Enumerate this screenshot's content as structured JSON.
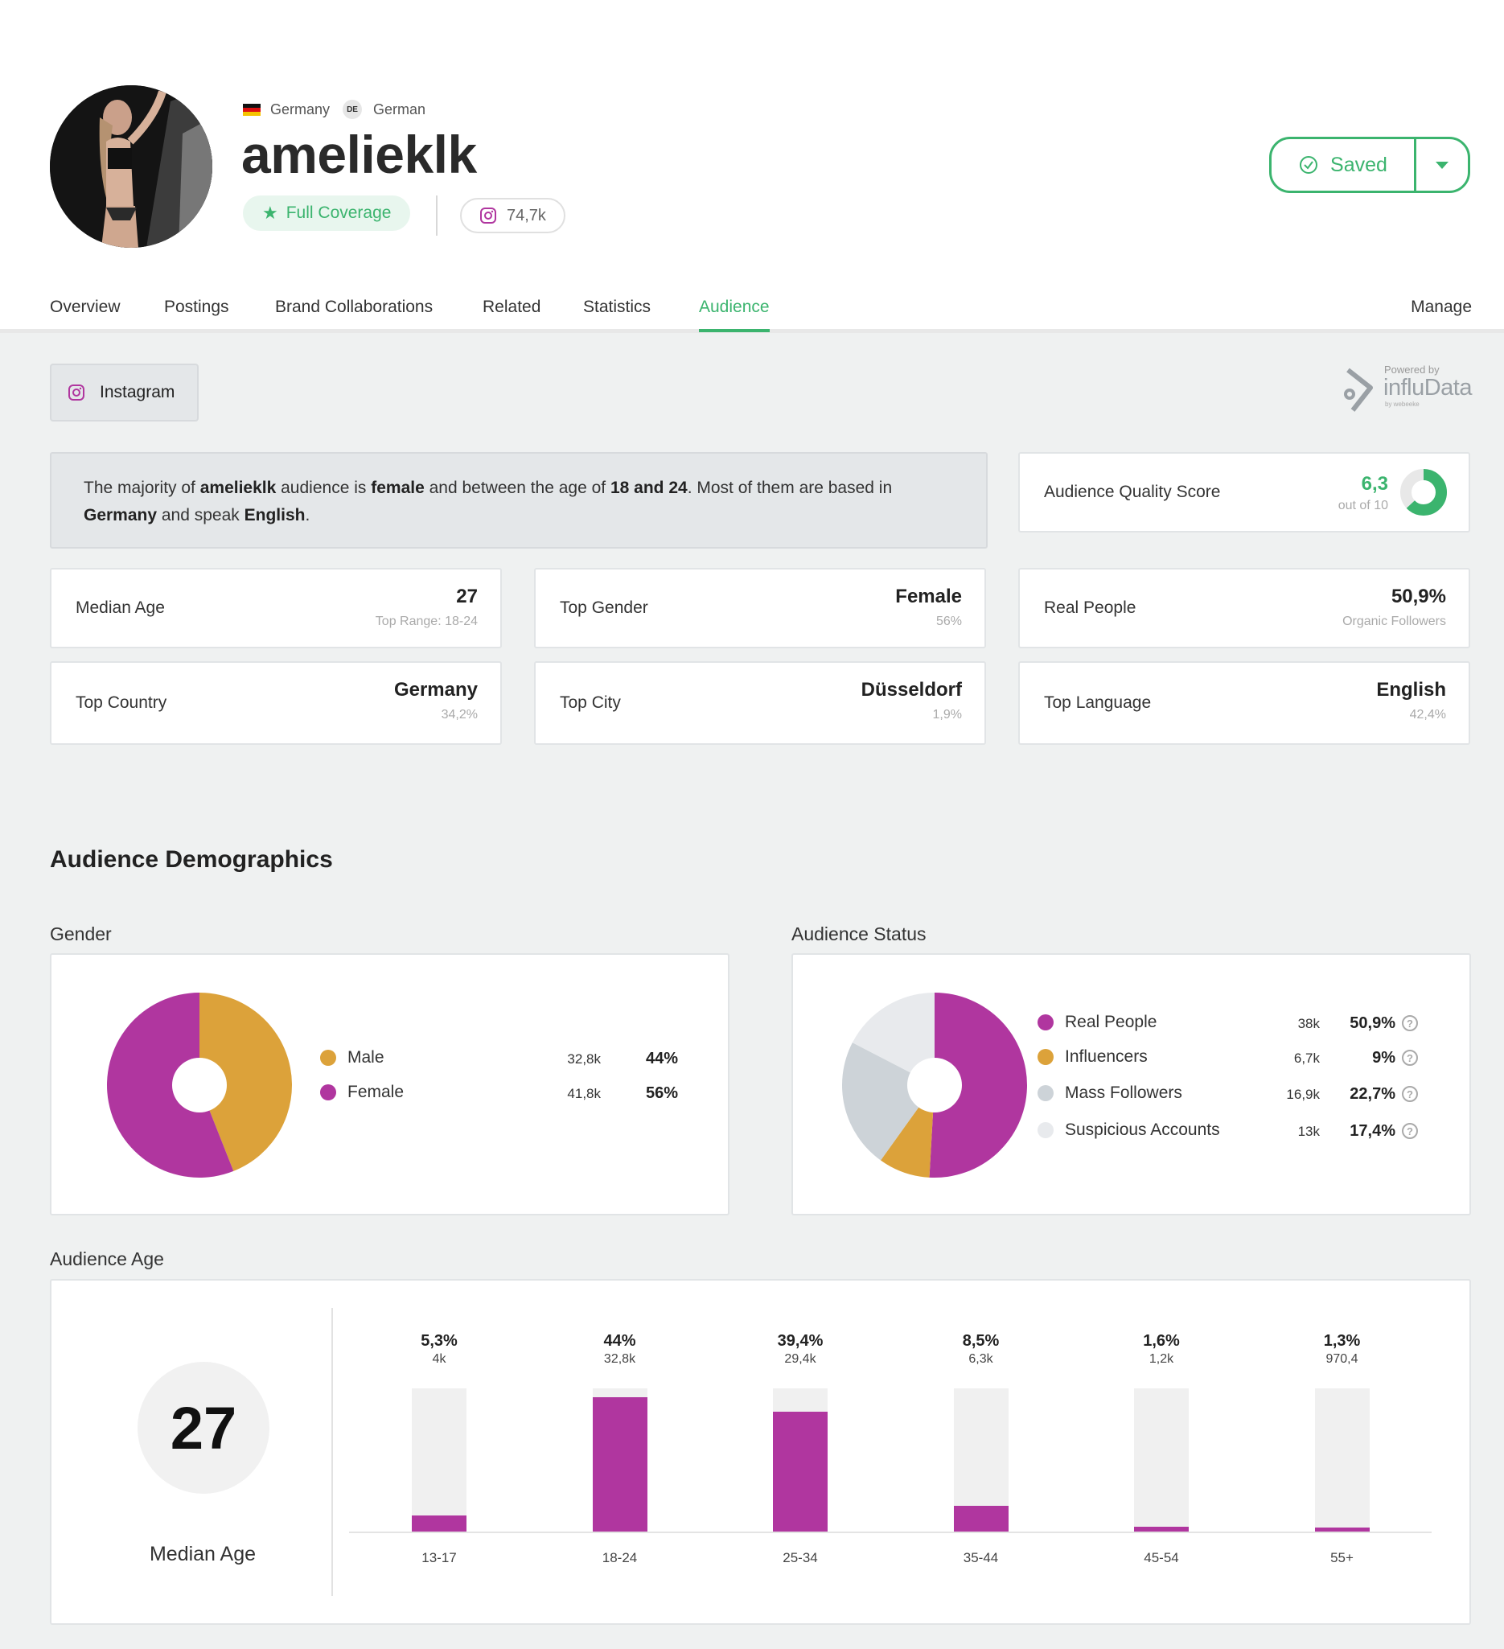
{
  "profile": {
    "country": "Germany",
    "language_code": "DE",
    "language": "German",
    "username": "amelieklk",
    "coverage_label": "Full Coverage",
    "followers": "74,7k",
    "saved_label": "Saved"
  },
  "tabs": [
    "Overview",
    "Postings",
    "Brand Collaborations",
    "Related",
    "Statistics",
    "Audience"
  ],
  "active_tab": "Audience",
  "manage_label": "Manage",
  "platform_label": "Instagram",
  "powered": {
    "small": "Powered by",
    "brand": "influData",
    "tiny": "by webeeke"
  },
  "summary": {
    "p1": "The majority of ",
    "name": "amelieklk",
    "p2": " audience is ",
    "gender": "female",
    "p3": " and between the age of ",
    "age": "18 and 24",
    "p4": ". Most of them are based in ",
    "country": "Germany",
    "p5": " and speak ",
    "lang": "English",
    "p6": "."
  },
  "aqs": {
    "label": "Audience Quality Score",
    "value": "6,3",
    "sub": "out of 10",
    "score": 6.3,
    "max": 10
  },
  "stats": {
    "median_age": {
      "label": "Median Age",
      "value": "27",
      "sub": "Top Range: 18-24"
    },
    "top_gender": {
      "label": "Top Gender",
      "value": "Female",
      "sub": "56%"
    },
    "real_people": {
      "label": "Real People",
      "value": "50,9%",
      "sub": "Organic Followers"
    },
    "top_country": {
      "label": "Top Country",
      "value": "Germany",
      "sub": "34,2%"
    },
    "top_city": {
      "label": "Top City",
      "value": "Düsseldorf",
      "sub": "1,9%"
    },
    "top_language": {
      "label": "Top Language",
      "value": "English",
      "sub": "42,4%"
    }
  },
  "demographics_title": "Audience Demographics",
  "gender": {
    "title": "Gender",
    "items": [
      {
        "label": "Male",
        "count": "32,8k",
        "pct": "44%",
        "value": 44,
        "color": "#dca23a"
      },
      {
        "label": "Female",
        "count": "41,8k",
        "pct": "56%",
        "value": 56,
        "color": "#b0369f"
      }
    ]
  },
  "status": {
    "title": "Audience Status",
    "items": [
      {
        "label": "Real People",
        "count": "38k",
        "pct": "50,9%",
        "value": 50.9,
        "color": "#b0369f"
      },
      {
        "label": "Influencers",
        "count": "6,7k",
        "pct": "9%",
        "value": 9,
        "color": "#dca23a"
      },
      {
        "label": "Mass Followers",
        "count": "16,9k",
        "pct": "22,7%",
        "value": 22.7,
        "color": "#cdd3d8"
      },
      {
        "label": "Suspicious Accounts",
        "count": "13k",
        "pct": "17,4%",
        "value": 17.4,
        "color": "#e8eaed"
      }
    ]
  },
  "age": {
    "title": "Audience Age",
    "median": "27",
    "median_label": "Median Age",
    "ymax": 47
  },
  "chart_data": {
    "type": "bar",
    "categories": [
      "13-17",
      "18-24",
      "25-34",
      "35-44",
      "45-54",
      "55+"
    ],
    "values": [
      5.3,
      44,
      39.4,
      8.5,
      1.6,
      1.3
    ],
    "pct_labels": [
      "5,3%",
      "44%",
      "39,4%",
      "8,5%",
      "1,6%",
      "1,3%"
    ],
    "count_labels": [
      "4k",
      "32,8k",
      "29,4k",
      "6,3k",
      "1,2k",
      "970,4"
    ],
    "title": "Audience Age",
    "color": "#b0369f"
  }
}
